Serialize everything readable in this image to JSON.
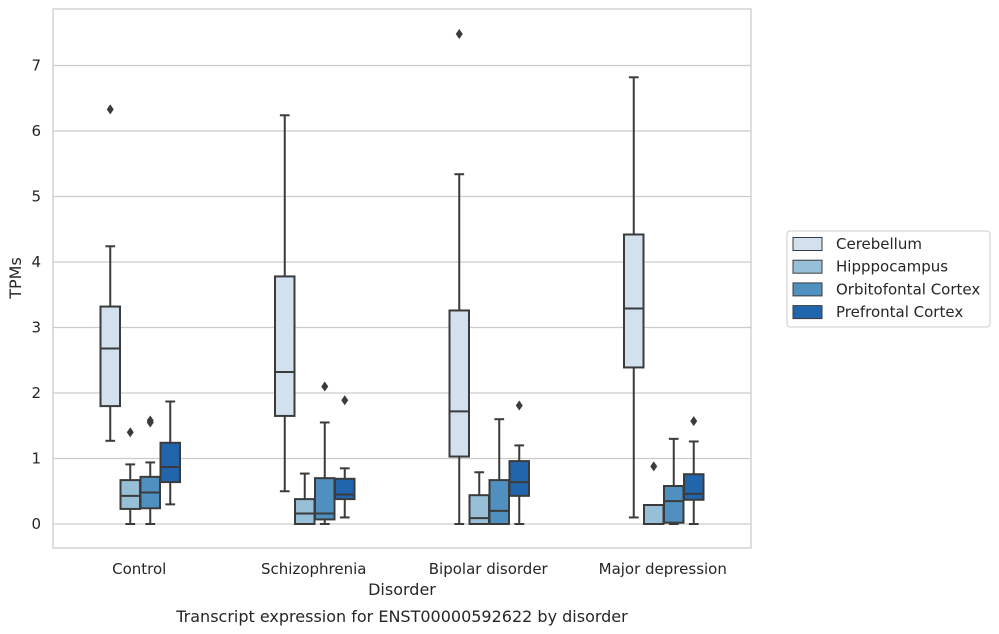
{
  "chart_data": {
    "type": "box",
    "title": "",
    "caption": "Transcript expression for ENST00000592622 by disorder",
    "xlabel": "Disorder",
    "ylabel": "TPMs",
    "ylim": [
      -0.35,
      7.85
    ],
    "yticks": [
      0,
      1,
      2,
      3,
      4,
      5,
      6,
      7
    ],
    "categories": [
      "Control",
      "Schizophrenia",
      "Bipolar disorder",
      "Major depression"
    ],
    "grid": "horizontal",
    "legend_position": "right",
    "series": [
      {
        "name": "Cerebellum",
        "color": "#d3e1ef",
        "boxes": [
          {
            "whisker_low": 1.27,
            "q1": 1.8,
            "median": 2.68,
            "q3": 3.32,
            "whisker_high": 4.24,
            "outliers": [
              6.33
            ]
          },
          {
            "whisker_low": 0.5,
            "q1": 1.65,
            "median": 2.32,
            "q3": 3.78,
            "whisker_high": 6.24,
            "outliers": []
          },
          {
            "whisker_low": 0.0,
            "q1": 1.03,
            "median": 1.72,
            "q3": 3.26,
            "whisker_high": 5.34,
            "outliers": [
              7.48
            ]
          },
          {
            "whisker_low": 0.1,
            "q1": 2.39,
            "median": 3.29,
            "q3": 4.42,
            "whisker_high": 6.82,
            "outliers": []
          }
        ]
      },
      {
        "name": "Hipppocampus",
        "color": "#97bfd7",
        "boxes": [
          {
            "whisker_low": 0.0,
            "q1": 0.23,
            "median": 0.43,
            "q3": 0.67,
            "whisker_high": 0.91,
            "outliers": [
              1.4
            ]
          },
          {
            "whisker_low": 0.0,
            "q1": 0.0,
            "median": 0.16,
            "q3": 0.38,
            "whisker_high": 0.77,
            "outliers": []
          },
          {
            "whisker_low": 0.0,
            "q1": 0.0,
            "median": 0.09,
            "q3": 0.44,
            "whisker_high": 0.79,
            "outliers": []
          },
          {
            "whisker_low": 0.0,
            "q1": 0.0,
            "median": 0.0,
            "q3": 0.29,
            "whisker_high": 0.29,
            "outliers": [
              0.88
            ]
          }
        ]
      },
      {
        "name": "Orbitofontal Cortex",
        "color": "#4f90c0",
        "boxes": [
          {
            "whisker_low": 0.0,
            "q1": 0.24,
            "median": 0.48,
            "q3": 0.72,
            "whisker_high": 0.94,
            "outliers": [
              1.55,
              1.58
            ]
          },
          {
            "whisker_low": 0.0,
            "q1": 0.07,
            "median": 0.16,
            "q3": 0.7,
            "whisker_high": 1.55,
            "outliers": [
              2.1
            ]
          },
          {
            "whisker_low": 0.0,
            "q1": 0.0,
            "median": 0.2,
            "q3": 0.67,
            "whisker_high": 1.6,
            "outliers": []
          },
          {
            "whisker_low": 0.0,
            "q1": 0.02,
            "median": 0.35,
            "q3": 0.58,
            "whisker_high": 1.3,
            "outliers": []
          }
        ]
      },
      {
        "name": "Prefrontal Cortex",
        "color": "#2166ac",
        "boxes": [
          {
            "whisker_low": 0.3,
            "q1": 0.64,
            "median": 0.87,
            "q3": 1.24,
            "whisker_high": 1.87,
            "outliers": []
          },
          {
            "whisker_low": 0.1,
            "q1": 0.38,
            "median": 0.45,
            "q3": 0.69,
            "whisker_high": 0.85,
            "outliers": [
              1.89
            ]
          },
          {
            "whisker_low": 0.0,
            "q1": 0.43,
            "median": 0.64,
            "q3": 0.96,
            "whisker_high": 1.2,
            "outliers": [
              1.81
            ]
          },
          {
            "whisker_low": 0.0,
            "q1": 0.37,
            "median": 0.46,
            "q3": 0.76,
            "whisker_high": 1.26,
            "outliers": [
              1.57
            ]
          }
        ]
      }
    ]
  }
}
